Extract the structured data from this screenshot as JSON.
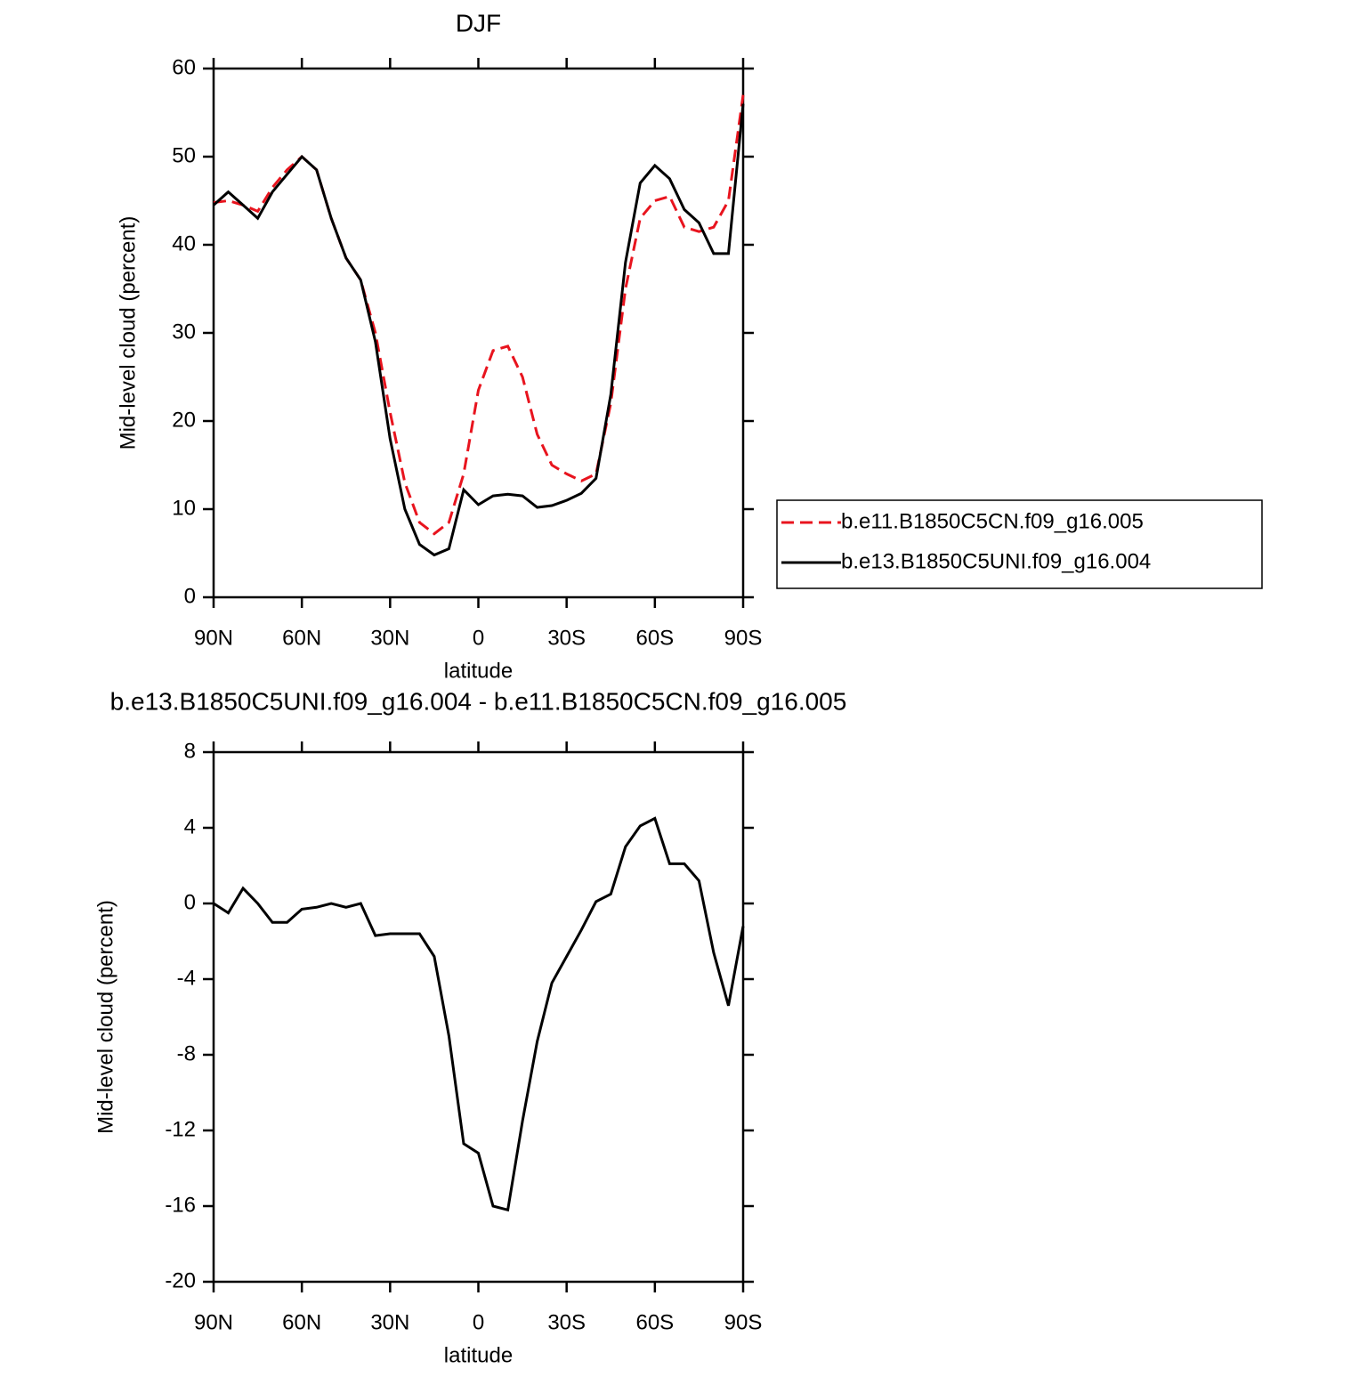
{
  "chart_data": [
    {
      "type": "line",
      "title": "DJF",
      "x_label": "latitude",
      "y_label": "Mid-level cloud (percent)",
      "x": [
        90,
        85,
        80,
        75,
        70,
        65,
        60,
        55,
        50,
        45,
        40,
        35,
        30,
        25,
        20,
        15,
        10,
        5,
        0,
        -5,
        -10,
        -15,
        -20,
        -25,
        -30,
        -35,
        -40,
        -45,
        -50,
        -55,
        -60,
        -65,
        -70,
        -75,
        -80,
        -85,
        -90
      ],
      "series": [
        {
          "name": "b.e11.B1850C5CN.f09_g16.005",
          "color": "#e8141e",
          "line_style": "dashed",
          "values": [
            44.8,
            45,
            44.5,
            43.8,
            46.5,
            48.5,
            50,
            48.5,
            43,
            38.5,
            36,
            30,
            21,
            13,
            8.5,
            7.2,
            8.5,
            14,
            23.5,
            28,
            28.5,
            25,
            18.5,
            15,
            14,
            13.2,
            14,
            22,
            35,
            43,
            45,
            45.5,
            42,
            41.5,
            42,
            45,
            57
          ]
        },
        {
          "name": "b.e13.B1850C5UNI.f09_g16.004",
          "color": "#000000",
          "line_style": "solid",
          "values": [
            44.5,
            46,
            44.5,
            43,
            46,
            48,
            50,
            48.5,
            43,
            38.5,
            36,
            29,
            18,
            10,
            6,
            4.8,
            5.5,
            12.2,
            10.5,
            11.5,
            11.7,
            11.5,
            10.2,
            10.4,
            11,
            11.8,
            13.5,
            23,
            38,
            47,
            49,
            47.5,
            44,
            42.5,
            39,
            39,
            56
          ]
        }
      ],
      "xlim": [
        90,
        -90
      ],
      "xticks": [
        {
          "value": 90,
          "label": "90N"
        },
        {
          "value": 60,
          "label": "60N"
        },
        {
          "value": 30,
          "label": "30N"
        },
        0,
        {
          "value": -30,
          "label": "30S"
        },
        {
          "value": -60,
          "label": "60S"
        },
        {
          "value": -90,
          "label": "90S"
        }
      ],
      "ylim": [
        0,
        60
      ],
      "yticks": [
        0,
        10,
        20,
        30,
        40,
        50,
        60
      ],
      "legend": "right"
    },
    {
      "type": "line",
      "title": "b.e13.B1850C5UNI.f09_g16.004 - b.e11.B1850C5CN.f09_g16.005",
      "x_label": "latitude",
      "y_label": "Mid-level cloud (percent)",
      "x": [
        90,
        85,
        80,
        75,
        70,
        65,
        60,
        55,
        50,
        45,
        40,
        35,
        30,
        25,
        20,
        15,
        10,
        5,
        0,
        -5,
        -10,
        -15,
        -20,
        -25,
        -30,
        -35,
        -40,
        -45,
        -50,
        -55,
        -60,
        -65,
        -70,
        -75,
        -80,
        -85,
        -90
      ],
      "color": "#000000",
      "values": [
        0,
        -0.5,
        0.8,
        0,
        -1,
        -1,
        -0.3,
        -0.2,
        0,
        -0.2,
        0,
        -1.7,
        -1.6,
        -1.6,
        -1.6,
        -2.8,
        -7,
        -12.7,
        -13.2,
        -16,
        -16.2,
        -11.5,
        -7.3,
        -4.2,
        -2.8,
        -1.4,
        0.1,
        0.5,
        3,
        4.1,
        4.5,
        2.1,
        2.1,
        1.2,
        -2.6,
        -5.4,
        -1.2
      ],
      "xlim": [
        90,
        -90
      ],
      "xticks": [
        {
          "value": 90,
          "label": "90N"
        },
        {
          "value": 60,
          "label": "60N"
        },
        {
          "value": 30,
          "label": "30N"
        },
        0,
        {
          "value": -30,
          "label": "30S"
        },
        {
          "value": -60,
          "label": "60S"
        },
        {
          "value": -90,
          "label": "90S"
        }
      ],
      "ylim": [
        -20,
        8
      ],
      "yticks": [
        -20,
        -16,
        -12,
        -8,
        -4,
        0,
        4,
        8
      ]
    }
  ]
}
